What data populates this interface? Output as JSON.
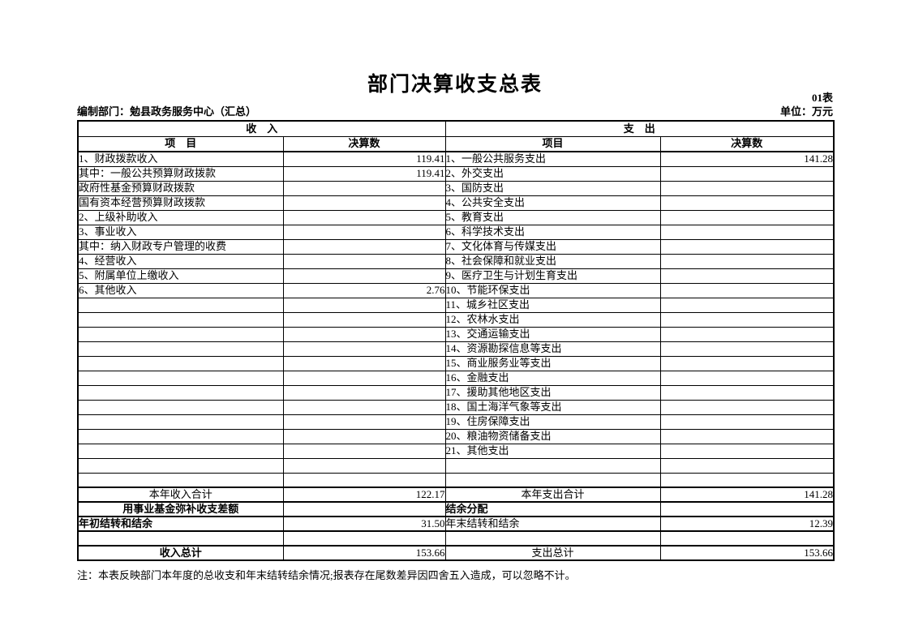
{
  "title": "部门决算收支总表",
  "meta": {
    "table_no": "01表",
    "prepared_by": "编制部门：勉县政务服务中心（汇总）",
    "unit": "单位：万元"
  },
  "table": {
    "income_section_title": "收　入",
    "expense_section_title": "支　出",
    "income_item_header": "项　目",
    "income_amount_header": "决算数",
    "expense_item_header": "项目",
    "expense_amount_header": "决算数",
    "rows": [
      {
        "left": {
          "label": "1、财政拨款收入",
          "value": "119.41",
          "style": "item1"
        },
        "right": {
          "label": "1、一般公共服务支出",
          "value": "141.28",
          "style": "item1"
        },
        "thick": false
      },
      {
        "left": {
          "label": "其中：一般公共预算财政拨款",
          "value": "119.41",
          "style": "item2"
        },
        "right": {
          "label": "2、外交支出",
          "value": "",
          "style": "item1"
        },
        "thick": false
      },
      {
        "left": {
          "label": "政府性基金预算财政拨款",
          "value": "",
          "style": "item3"
        },
        "right": {
          "label": "3、国防支出",
          "value": "",
          "style": "item1"
        },
        "thick": false
      },
      {
        "left": {
          "label": "国有资本经营预算财政拨款",
          "value": "",
          "style": "item3"
        },
        "right": {
          "label": "4、公共安全支出",
          "value": "",
          "style": "item1"
        },
        "thick": false
      },
      {
        "left": {
          "label": "2、上级补助收入",
          "value": "",
          "style": "item1"
        },
        "right": {
          "label": "5、教育支出",
          "value": "",
          "style": "item1"
        },
        "thick": false
      },
      {
        "left": {
          "label": "3、事业收入",
          "value": "",
          "style": "item1"
        },
        "right": {
          "label": "6、科学技术支出",
          "value": "",
          "style": "item1"
        },
        "thick": false
      },
      {
        "left": {
          "label": "其中：纳入财政专户管理的收费",
          "value": "",
          "style": "item2"
        },
        "right": {
          "label": "7、文化体育与传媒支出",
          "value": "",
          "style": "item1"
        },
        "thick": false
      },
      {
        "left": {
          "label": "4、经营收入",
          "value": "",
          "style": "item1"
        },
        "right": {
          "label": "8、社会保障和就业支出",
          "value": "",
          "style": "item1"
        },
        "thick": false
      },
      {
        "left": {
          "label": "5、附属单位上缴收入",
          "value": "",
          "style": "item1"
        },
        "right": {
          "label": "9、医疗卫生与计划生育支出",
          "value": "",
          "style": "item1"
        },
        "thick": false
      },
      {
        "left": {
          "label": "6、其他收入",
          "value": "2.76",
          "style": "item1"
        },
        "right": {
          "label": "10、节能环保支出",
          "value": "",
          "style": "item1"
        },
        "thick": false
      },
      {
        "left": {
          "label": "",
          "value": "",
          "style": ""
        },
        "right": {
          "label": "11、城乡社区支出",
          "value": "",
          "style": "item1"
        },
        "thick": false
      },
      {
        "left": {
          "label": "",
          "value": "",
          "style": ""
        },
        "right": {
          "label": "12、农林水支出",
          "value": "",
          "style": "item1"
        },
        "thick": false
      },
      {
        "left": {
          "label": "",
          "value": "",
          "style": ""
        },
        "right": {
          "label": "13、交通运输支出",
          "value": "",
          "style": "item1"
        },
        "thick": false
      },
      {
        "left": {
          "label": "",
          "value": "",
          "style": ""
        },
        "right": {
          "label": "14、资源勘探信息等支出",
          "value": "",
          "style": "item1"
        },
        "thick": false
      },
      {
        "left": {
          "label": "",
          "value": "",
          "style": ""
        },
        "right": {
          "label": "15、商业服务业等支出",
          "value": "",
          "style": "item1"
        },
        "thick": false
      },
      {
        "left": {
          "label": "",
          "value": "",
          "style": ""
        },
        "right": {
          "label": "16、金融支出",
          "value": "",
          "style": "item1"
        },
        "thick": false
      },
      {
        "left": {
          "label": "",
          "value": "",
          "style": ""
        },
        "right": {
          "label": "17、援助其他地区支出",
          "value": "",
          "style": "item1"
        },
        "thick": false
      },
      {
        "left": {
          "label": "",
          "value": "",
          "style": ""
        },
        "right": {
          "label": "18、国土海洋气象等支出",
          "value": "",
          "style": "item1"
        },
        "thick": false
      },
      {
        "left": {
          "label": "",
          "value": "",
          "style": ""
        },
        "right": {
          "label": "19、住房保障支出",
          "value": "",
          "style": "item1"
        },
        "thick": false
      },
      {
        "left": {
          "label": "",
          "value": "",
          "style": ""
        },
        "right": {
          "label": "20、粮油物资储备支出",
          "value": "",
          "style": "item1"
        },
        "thick": false
      },
      {
        "left": {
          "label": "",
          "value": "",
          "style": ""
        },
        "right": {
          "label": "21、其他支出",
          "value": "",
          "style": "item1"
        },
        "thick": false
      },
      {
        "left": {
          "label": "",
          "value": "",
          "style": ""
        },
        "right": {
          "label": "",
          "value": "",
          "style": ""
        },
        "thick": false
      },
      {
        "left": {
          "label": "",
          "value": "",
          "style": ""
        },
        "right": {
          "label": "",
          "value": "",
          "style": ""
        },
        "thick": false
      },
      {
        "left": {
          "label": "本年收入合计",
          "value": "122.17",
          "style": "center"
        },
        "right": {
          "label": "本年支出合计",
          "value": "141.28",
          "style": "center"
        },
        "thick": true
      },
      {
        "left": {
          "label": "用事业基金弥补收支差额",
          "value": "",
          "style": "center-bold"
        },
        "right": {
          "label": "结余分配",
          "value": "",
          "style": "indent72-bold"
        },
        "thick": true
      },
      {
        "left": {
          "label": "年初结转和结余",
          "value": "31.50",
          "style": "indent47-bold"
        },
        "right": {
          "label": "年末结转和结余",
          "value": "12.39",
          "style": "indent72"
        },
        "thick": true
      },
      {
        "left": {
          "label": "",
          "value": "",
          "style": ""
        },
        "right": {
          "label": "",
          "value": "",
          "style": ""
        },
        "thick": true
      },
      {
        "left": {
          "label": "收入总计",
          "value": "153.66",
          "style": "center-bold"
        },
        "right": {
          "label": "支出总计",
          "value": "153.66",
          "style": "center"
        },
        "thick": true
      }
    ]
  },
  "note": "注：本表反映部门本年度的总收支和年末结转结余情况;报表存在尾数差异因四舍五入造成，可以忽略不计。"
}
